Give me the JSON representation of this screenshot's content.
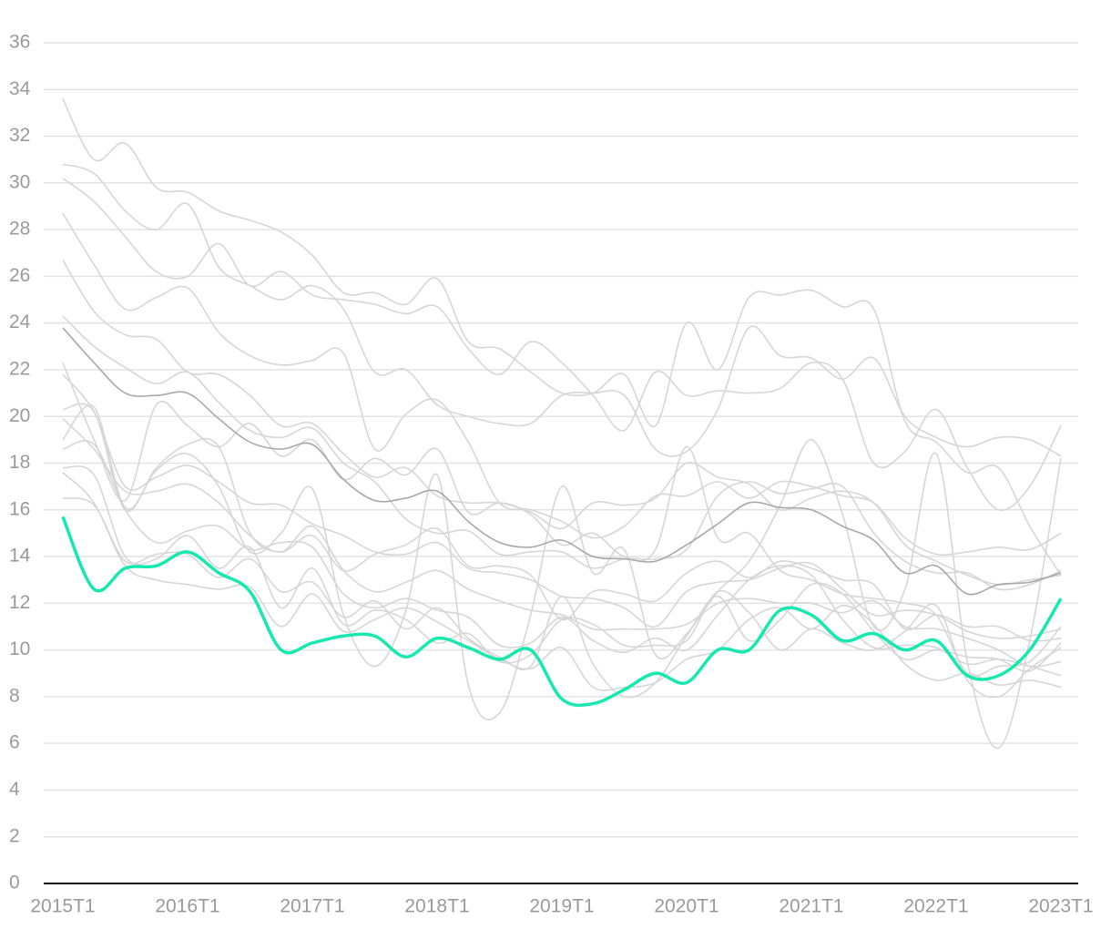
{
  "chart_data": {
    "type": "line",
    "categories": [
      "2015T1",
      null,
      null,
      null,
      "2016T1",
      null,
      null,
      null,
      "2017T1",
      null,
      null,
      null,
      "2018T1",
      null,
      null,
      null,
      "2019T1",
      null,
      null,
      null,
      "2020T1",
      null,
      null,
      null,
      "2021T1",
      null,
      null,
      null,
      "2022T1",
      null,
      null,
      null,
      "2023T1"
    ],
    "ylim": [
      0,
      36
    ],
    "yticks": [
      0,
      2,
      4,
      6,
      8,
      10,
      12,
      14,
      16,
      18,
      20,
      22,
      24,
      26,
      28,
      30,
      32,
      34,
      36
    ],
    "grid": true,
    "series": [
      {
        "color": "#d6d6d6",
        "values": [
          33.6,
          31.0,
          31.7,
          29.8,
          29.6,
          28.8,
          28.4,
          27.9,
          26.9,
          25.3,
          25.3,
          24.8,
          25.9,
          23.2,
          22.9,
          21.9,
          21.0,
          21.0,
          21.8,
          19.6,
          24.0,
          22.0,
          25.1,
          25.2,
          25.4,
          24.7,
          24.6,
          19.8,
          18.9,
          17.6,
          17.8,
          15.3,
          13.2
        ]
      },
      {
        "color": "#d6d6d6",
        "values": [
          30.8,
          30.4,
          28.8,
          28.0,
          29.1,
          26.4,
          25.6,
          25.0,
          25.6,
          24.6,
          21.9,
          22.0,
          20.5,
          20.0,
          19.7,
          19.7,
          20.9,
          21.0,
          20.9,
          18.6,
          18.5,
          20.3,
          23.8,
          22.6,
          22.5,
          21.6,
          22.5,
          20.0,
          19.1,
          18.7,
          19.1,
          19.0,
          18.3
        ]
      },
      {
        "color": "#d6d6d6",
        "values": [
          30.2,
          29.2,
          27.7,
          26.2,
          26.0,
          27.4,
          25.6,
          26.2,
          25.2,
          25.0,
          24.8,
          24.4,
          24.7,
          22.9,
          21.8,
          23.2,
          22.3,
          20.9,
          19.4,
          21.9,
          20.9,
          21.1,
          21.0,
          21.2,
          22.3,
          21.6,
          18.0,
          18.5,
          20.3,
          17.8,
          16.0,
          17.0,
          19.6
        ]
      },
      {
        "color": "#d6d6d6",
        "values": [
          28.7,
          26.5,
          24.6,
          25.1,
          25.5,
          23.6,
          22.6,
          22.2,
          22.4,
          22.7,
          18.6,
          20.1,
          20.7,
          18.9,
          16.3,
          16.0,
          15.5,
          14.8,
          15.3,
          16.6,
          16.6,
          17.2,
          16.5,
          17.2,
          17.0,
          16.6,
          16.3,
          14.8,
          14.1,
          14.2,
          14.4,
          14.3,
          15.0
        ]
      },
      {
        "color": "#d6d6d6",
        "values": [
          26.7,
          24.5,
          23.5,
          23.3,
          21.9,
          21.8,
          20.9,
          19.6,
          19.7,
          18.4,
          17.4,
          17.8,
          16.6,
          16.3,
          16.3,
          15.9,
          15.2,
          16.3,
          16.2,
          16.5,
          18.0,
          17.4,
          17.1,
          16.0,
          16.5,
          16.8,
          16.3,
          14.5,
          13.8,
          13.2,
          12.8,
          13.0,
          13.2
        ]
      },
      {
        "color": "#d6d6d6",
        "values": [
          24.3,
          23.0,
          22.1,
          21.4,
          21.9,
          20.6,
          19.4,
          19.1,
          19.5,
          18.0,
          17.2,
          15.6,
          15.0,
          15.1,
          14.1,
          14.2,
          14.2,
          13.5,
          13.9,
          13.9,
          14.3,
          16.6,
          17.2,
          16.7,
          16.9,
          17.0,
          15.0,
          13.8,
          13.3,
          13.3,
          12.6,
          12.8,
          13.4
        ]
      },
      {
        "color": "#d6d6d6",
        "values": [
          22.3,
          19.0,
          16.4,
          20.5,
          19.6,
          18.7,
          19.7,
          18.3,
          19.0,
          17.3,
          18.2,
          17.5,
          18.6,
          15.9,
          16.3,
          15.8,
          14.5,
          15.0,
          14.0,
          14.3,
          18.7,
          14.8,
          15.0,
          13.4,
          13.0,
          12.4,
          12.2,
          12.0,
          11.5,
          9.0,
          9.3,
          9.5,
          11.0
        ]
      },
      {
        "color": "#d6d6d6",
        "values": [
          21.8,
          20.2,
          17.0,
          17.4,
          17.9,
          17.2,
          16.3,
          16.2,
          15.4,
          14.9,
          14.2,
          14.1,
          14.6,
          13.5,
          13.3,
          13.0,
          12.3,
          12.2,
          11.8,
          11.0,
          12.5,
          12.9,
          13.0,
          13.5,
          13.7,
          12.6,
          11.5,
          11.7,
          11.5,
          10.8,
          10.5,
          10.6,
          10.9
        ]
      },
      {
        "color": "#d6d6d6",
        "values": [
          20.3,
          20.2,
          16.0,
          17.8,
          18.8,
          18.7,
          15.0,
          14.2,
          14.9,
          13.4,
          14.1,
          14.5,
          15.2,
          13.6,
          13.6,
          13.2,
          11.3,
          12.5,
          12.4,
          12.1,
          13.3,
          13.8,
          13.1,
          13.8,
          13.5,
          13.0,
          12.8,
          10.9,
          11.5,
          11.0,
          11.0,
          10.4,
          10.5
        ]
      },
      {
        "color": "#d6d6d6",
        "values": [
          19.9,
          18.6,
          16.8,
          16.8,
          17.1,
          16.3,
          14.9,
          14.2,
          15.3,
          13.4,
          12.5,
          12.9,
          13.4,
          12.6,
          12.1,
          11.7,
          11.5,
          10.9,
          10.9,
          10.9,
          11.1,
          12.0,
          12.2,
          12.0,
          12.0,
          11.6,
          12.1,
          11.0,
          10.9,
          10.5,
          10.0,
          9.3,
          9.5
        ]
      },
      {
        "color": "#d6d6d6",
        "values": [
          19.0,
          20.4,
          16.1,
          17.7,
          18.4,
          17.0,
          14.2,
          15.0,
          16.9,
          11.5,
          9.3,
          11.7,
          17.5,
          8.5,
          7.3,
          11.5,
          17.0,
          13.3,
          14.3,
          9.8,
          10.7,
          12.5,
          13.8,
          16.2,
          19.0,
          15.8,
          11.0,
          12.6,
          18.4,
          9.5,
          5.8,
          10.4,
          18.2
        ]
      },
      {
        "color": "#d6d6d6",
        "values": [
          18.6,
          18.8,
          16.0,
          14.6,
          15.1,
          15.3,
          14.3,
          14.6,
          14.4,
          12.4,
          11.8,
          12.2,
          11.7,
          11.4,
          10.2,
          10.3,
          11.4,
          10.4,
          9.9,
          10.5,
          10.0,
          11.5,
          13.0,
          13.6,
          13.2,
          11.3,
          10.1,
          10.2,
          10.1,
          9.4,
          9.6,
          9.3,
          8.9
        ]
      },
      {
        "color": "#d6d6d6",
        "values": [
          17.8,
          17.5,
          14.0,
          13.9,
          14.9,
          13.5,
          14.4,
          11.8,
          13.5,
          11.1,
          11.7,
          11.3,
          10.3,
          10.7,
          9.5,
          9.8,
          11.3,
          11.1,
          10.2,
          10.2,
          10.4,
          12.5,
          11.6,
          10.0,
          10.9,
          10.3,
          10.0,
          10.8,
          11.9,
          8.7,
          8.0,
          9.2,
          10.1
        ]
      },
      {
        "color": "#d6d6d6",
        "values": [
          17.6,
          16.3,
          13.6,
          13.0,
          12.8,
          12.6,
          12.7,
          11.0,
          12.4,
          10.8,
          11.3,
          11.8,
          11.2,
          10.4,
          9.6,
          9.2,
          10.1,
          8.4,
          8.4,
          8.6,
          9.6,
          10.0,
          11.3,
          11.8,
          10.9,
          11.9,
          11.1,
          9.4,
          8.7,
          9.0,
          8.5,
          8.7,
          8.4
        ]
      },
      {
        "color": "#d6d6d6",
        "values": [
          16.5,
          16.2,
          13.8,
          14.1,
          14.1,
          13.1,
          13.9,
          12.5,
          12.9,
          11.4,
          12.1,
          10.9,
          11.8,
          10.5,
          9.7,
          9.3,
          12.3,
          9.4,
          8.0,
          8.6,
          10.6,
          12.3,
          10.4,
          11.3,
          12.8,
          12.4,
          10.8,
          9.6,
          10.0,
          9.7,
          9.6,
          9.1,
          10.3
        ]
      },
      {
        "color": "#a8a8a8",
        "values": [
          23.8,
          22.3,
          21.0,
          20.9,
          21.0,
          19.9,
          18.9,
          18.6,
          18.8,
          17.3,
          16.4,
          16.5,
          16.8,
          15.5,
          14.6,
          14.4,
          14.7,
          14.0,
          13.9,
          13.8,
          14.5,
          15.4,
          16.3,
          16.1,
          16.0,
          15.3,
          14.7,
          13.3,
          13.6,
          12.4,
          12.8,
          12.9,
          13.3
        ]
      },
      {
        "color": "#17e8b0",
        "values": [
          15.7,
          12.6,
          13.5,
          13.6,
          14.2,
          13.3,
          12.5,
          10.0,
          10.3,
          10.6,
          10.6,
          9.7,
          10.5,
          10.1,
          9.6,
          10.0,
          7.9,
          7.7,
          8.3,
          9.0,
          8.6,
          10.0,
          10.0,
          11.7,
          11.5,
          10.4,
          10.7,
          10.0,
          10.4,
          8.9,
          8.9,
          10.0,
          12.2
        ]
      }
    ]
  }
}
